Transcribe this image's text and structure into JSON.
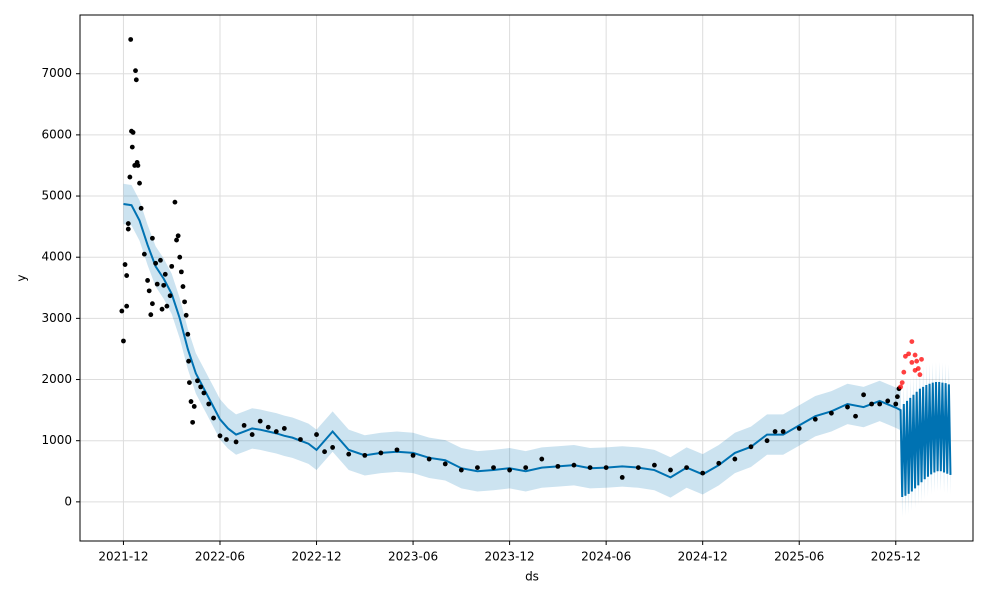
{
  "chart_data": {
    "type": "line",
    "xlabel": "ds",
    "ylabel": "y",
    "xlim": [
      -2.7,
      52.8
    ],
    "ylim": [
      -640,
      7960
    ],
    "xticks": [
      {
        "value": 0,
        "label": "2021-12"
      },
      {
        "value": 6,
        "label": "2022-06"
      },
      {
        "value": 12,
        "label": "2022-12"
      },
      {
        "value": 18,
        "label": "2023-06"
      },
      {
        "value": 24,
        "label": "2023-12"
      },
      {
        "value": 30,
        "label": "2024-06"
      },
      {
        "value": 36,
        "label": "2024-12"
      },
      {
        "value": 42,
        "label": "2025-06"
      },
      {
        "value": 48,
        "label": "2025-12"
      }
    ],
    "yticks": [
      0,
      1000,
      2000,
      3000,
      4000,
      5000,
      6000,
      7000
    ],
    "grid": true,
    "forecast": {
      "color": "#0072B2",
      "x": [
        0,
        0.5,
        1,
        1.5,
        2,
        2.5,
        3,
        3.5,
        4,
        4.5,
        5,
        5.5,
        6,
        6.5,
        7,
        7.5,
        8,
        8.5,
        9,
        9.5,
        10,
        10.5,
        11,
        11.5,
        12,
        13,
        14,
        15,
        16,
        17,
        18,
        19,
        20,
        21,
        22,
        23,
        24,
        25,
        26,
        27,
        28,
        29,
        30,
        31,
        32,
        33,
        34,
        35,
        36,
        37,
        38,
        39,
        40,
        41,
        42,
        43,
        44,
        45,
        46,
        47,
        48,
        48.3,
        48.4,
        48.5,
        48.6,
        48.7,
        48.8,
        48.9,
        49.0,
        49.1,
        49.2,
        49.3,
        49.4,
        49.5,
        49.6,
        49.7,
        49.8,
        49.9,
        50.0,
        50.1,
        50.2,
        50.3,
        50.4,
        50.5,
        50.6,
        50.7,
        50.8,
        50.9,
        51.0,
        51.1,
        51.2,
        51.3,
        51.4
      ],
      "values": [
        4870,
        4850,
        4600,
        4200,
        3850,
        3650,
        3400,
        3000,
        2500,
        2100,
        1850,
        1600,
        1350,
        1200,
        1100,
        1150,
        1200,
        1180,
        1150,
        1120,
        1080,
        1050,
        1000,
        950,
        850,
        1150,
        850,
        760,
        800,
        820,
        800,
        720,
        680,
        550,
        500,
        520,
        550,
        500,
        560,
        580,
        600,
        550,
        560,
        580,
        560,
        520,
        400,
        560,
        450,
        600,
        800,
        900,
        1100,
        1100,
        1250,
        1400,
        1480,
        1600,
        1550,
        1650,
        1540,
        1500,
        80,
        1600,
        100,
        1650,
        130,
        1700,
        170,
        1750,
        220,
        1800,
        270,
        1850,
        320,
        1880,
        370,
        1910,
        410,
        1930,
        450,
        1950,
        480,
        1960,
        500,
        1960,
        500,
        1950,
        480,
        1940,
        460,
        1920,
        440
      ],
      "lower": [
        4540,
        4520,
        4270,
        3870,
        3520,
        3320,
        3070,
        2670,
        2170,
        1770,
        1520,
        1270,
        1020,
        870,
        770,
        820,
        870,
        850,
        820,
        790,
        750,
        720,
        670,
        620,
        520,
        820,
        520,
        430,
        470,
        490,
        470,
        390,
        350,
        220,
        170,
        190,
        220,
        170,
        230,
        250,
        270,
        220,
        230,
        250,
        230,
        190,
        70,
        230,
        120,
        270,
        470,
        570,
        770,
        770,
        920,
        1070,
        1150,
        1270,
        1220,
        1320,
        1210,
        1170,
        -250,
        1270,
        -230,
        1320,
        -200,
        1370,
        -160,
        1420,
        -110,
        1470,
        -60,
        1520,
        -10,
        1550,
        40,
        1580,
        80,
        1600,
        120,
        1620,
        150,
        1630,
        170,
        1630,
        170,
        1620,
        150,
        1610,
        130,
        1590,
        110
      ],
      "upper": [
        5200,
        5180,
        4930,
        4530,
        4180,
        3980,
        3730,
        3330,
        2830,
        2430,
        2180,
        1930,
        1680,
        1530,
        1430,
        1480,
        1530,
        1510,
        1480,
        1450,
        1410,
        1380,
        1330,
        1280,
        1180,
        1480,
        1180,
        1090,
        1130,
        1150,
        1130,
        1050,
        1010,
        880,
        830,
        850,
        880,
        830,
        890,
        910,
        930,
        880,
        890,
        910,
        890,
        850,
        730,
        890,
        780,
        930,
        1130,
        1230,
        1430,
        1430,
        1580,
        1730,
        1810,
        1930,
        1880,
        1980,
        1870,
        1830,
        410,
        1930,
        430,
        1980,
        460,
        2030,
        500,
        2080,
        550,
        2130,
        600,
        2180,
        650,
        2210,
        700,
        2240,
        740,
        2260,
        780,
        2280,
        810,
        2290,
        830,
        2290,
        830,
        2280,
        810,
        2270,
        790,
        2250,
        770
      ]
    },
    "observed": {
      "color": "#000000",
      "x": [
        0,
        -0.1,
        0.1,
        0.2,
        0.3,
        0.3,
        0.2,
        0.4,
        0.5,
        0.45,
        0.55,
        0.6,
        0.7,
        0.75,
        0.8,
        0.85,
        0.9,
        1,
        1.1,
        1.3,
        1.5,
        1.6,
        1.7,
        1.8,
        1.8,
        2,
        2.1,
        2.3,
        2.4,
        2.5,
        2.6,
        2.7,
        2.9,
        3.0,
        3.2,
        3.3,
        3.4,
        3.5,
        3.6,
        3.7,
        3.8,
        3.9,
        4,
        4.05,
        4.1,
        4.2,
        4.3,
        4.4,
        4.6,
        4.8,
        5,
        5.3,
        5.6,
        6,
        6.4,
        7,
        7.5,
        8,
        8.5,
        9,
        9.5,
        10,
        11,
        12,
        12.5,
        13,
        14,
        15,
        16,
        17,
        18,
        19,
        20,
        21,
        22,
        23,
        24,
        25,
        26,
        27,
        28,
        29,
        30,
        31,
        32,
        33,
        34,
        35,
        36,
        37,
        38,
        39,
        40,
        40.5,
        41,
        42,
        43,
        44,
        45,
        45.5,
        46,
        46.5,
        47,
        47.5,
        48,
        48.1,
        48.2
      ],
      "values": [
        2630,
        3120,
        3880,
        3700,
        4550,
        4460,
        3200,
        5310,
        6060,
        7560,
        5800,
        6040,
        5500,
        7050,
        6900,
        5550,
        5500,
        5210,
        4800,
        4050,
        3620,
        3450,
        3060,
        3240,
        4310,
        3900,
        3560,
        3950,
        3150,
        3540,
        3720,
        3200,
        3370,
        3850,
        4900,
        4280,
        4350,
        4000,
        3760,
        3520,
        3270,
        3050,
        2740,
        2300,
        1950,
        1640,
        1300,
        1560,
        1980,
        1880,
        1780,
        1600,
        1370,
        1080,
        1020,
        980,
        1250,
        1100,
        1320,
        1220,
        1150,
        1200,
        1020,
        1100,
        820,
        890,
        780,
        760,
        800,
        850,
        760,
        700,
        620,
        520,
        560,
        560,
        520,
        560,
        700,
        580,
        600,
        560,
        560,
        400,
        560,
        600,
        520,
        560,
        470,
        630,
        700,
        900,
        1000,
        1150,
        1150,
        1200,
        1350,
        1450,
        1550,
        1400,
        1750,
        1600,
        1600,
        1650,
        1600,
        1720,
        1850
      ]
    },
    "test": {
      "color": "#ff0000",
      "x": [
        48.3,
        48.4,
        48.5,
        48.6,
        48.8,
        49,
        49,
        49.2,
        49.3,
        49.4,
        49.5,
        49.6,
        49.2
      ],
      "values": [
        1880,
        1950,
        2120,
        2380,
        2420,
        2280,
        2620,
        2400,
        2300,
        2180,
        2080,
        2330,
        2150
      ]
    }
  }
}
